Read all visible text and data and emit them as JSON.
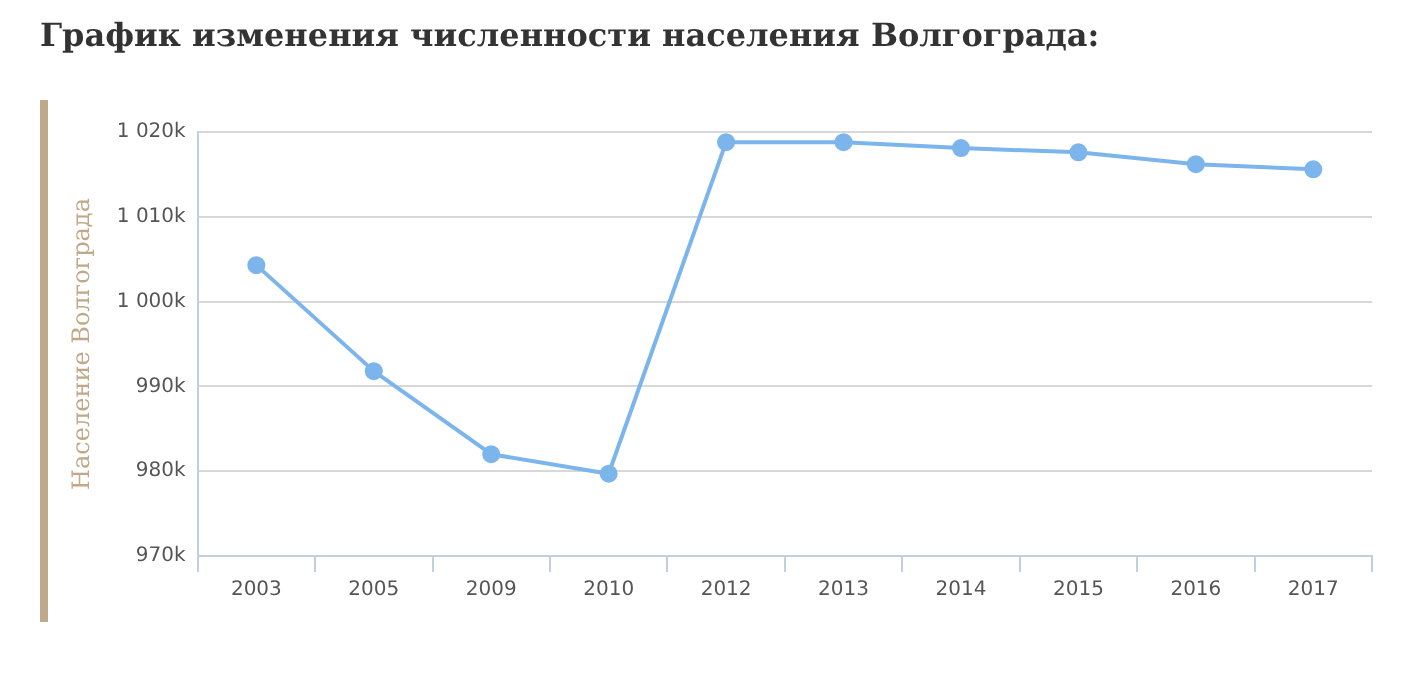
{
  "chart_data": {
    "type": "line",
    "title": "График изменения численности населения Волгограда:",
    "ylabel": "Население Волгограда",
    "categories": [
      "2003",
      "2005",
      "2009",
      "2010",
      "2012",
      "2013",
      "2014",
      "2015",
      "2016",
      "2017"
    ],
    "series": [
      {
        "color": "#7cb5ec",
        "values": [
          1004300,
          991800,
          982000,
          979700,
          1018800,
          1018800,
          1018100,
          1017600,
          1016200,
          1015600
        ]
      }
    ],
    "ylim": [
      970000,
      1020000
    ],
    "yticks": [
      {
        "value": 970000,
        "label": "970k"
      },
      {
        "value": 980000,
        "label": "980k"
      },
      {
        "value": 990000,
        "label": "990k"
      },
      {
        "value": 1000000,
        "label": "1 000k"
      },
      {
        "value": 1010000,
        "label": "1 010k"
      },
      {
        "value": 1020000,
        "label": "1 020k"
      }
    ],
    "grid": "y",
    "marker": "circle",
    "line_style": "solid",
    "legend": false
  }
}
